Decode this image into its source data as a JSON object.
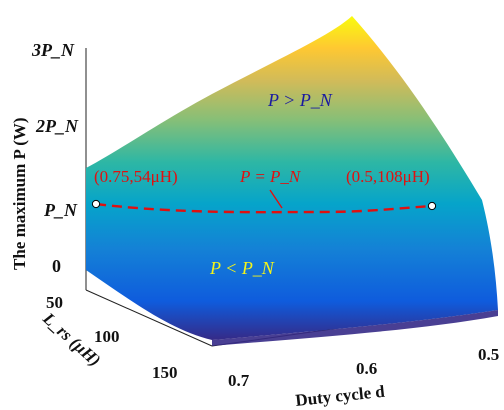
{
  "chart_data": {
    "type": "surface",
    "title": "",
    "xlabel": "Duty cycle d",
    "ylabel": "L_rs (μH)",
    "zlabel": "The maximum P (W)",
    "x_ticks": [
      "0.7",
      "0.6",
      "0.5"
    ],
    "y_ticks": [
      "50",
      "100",
      "150"
    ],
    "z_ticks": [
      "0",
      "P_N",
      "2P_N",
      "3P_N"
    ],
    "x_range": [
      0.5,
      0.75
    ],
    "y_range": [
      40,
      160
    ],
    "z_range": [
      0,
      3
    ],
    "z_unit": "P_N",
    "regions": {
      "above": "P > P_N",
      "below": "P < P_N"
    },
    "curve": {
      "label": "P = P_N",
      "style": "dashed",
      "color": "#e01010",
      "points": [
        {
          "d": 0.75,
          "L_rs": 54,
          "label": "(0.75,54μH)"
        },
        {
          "d": 0.5,
          "L_rs": 108,
          "label": "(0.5,108μH)"
        }
      ]
    },
    "colormap": "parula",
    "colors": [
      "#352a87",
      "#0f5cdd",
      "#1481d6",
      "#06a4ca",
      "#2eb7a4",
      "#87bf77",
      "#d1bb59",
      "#fec832",
      "#f9fb0e"
    ]
  }
}
